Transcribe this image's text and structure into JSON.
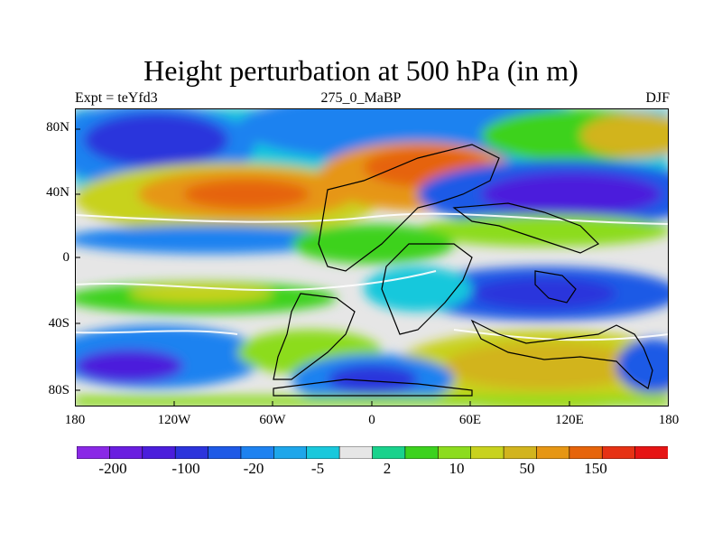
{
  "title": "Height perturbation at 500 hPa (in m)",
  "left_label": "Expt = teYfd3",
  "center_label": "275_0_MaBP",
  "right_label": "DJF",
  "axes": {
    "y_ticks": [
      "80N",
      "40N",
      "0",
      "40S",
      "80S"
    ],
    "x_ticks": [
      "180",
      "120W",
      "60W",
      "0",
      "60E",
      "120E",
      "180"
    ]
  },
  "colorbar": {
    "colors": [
      "#8a28e6",
      "#6a1ee0",
      "#4b1edc",
      "#2c34dc",
      "#1e5ae6",
      "#1e82f0",
      "#1ea6ea",
      "#19c8dc",
      "#e6e6e6",
      "#19d28c",
      "#3cd21e",
      "#8cdc1e",
      "#c8d21e",
      "#d2b41e",
      "#e69614",
      "#e6640a",
      "#e63214",
      "#e61414"
    ],
    "labels": [
      "-200",
      "-100",
      "-20",
      "-5",
      "2",
      "10",
      "50",
      "150"
    ]
  },
  "palette": {
    "neutral": "#e6e6e6",
    "coast": "#000000"
  }
}
